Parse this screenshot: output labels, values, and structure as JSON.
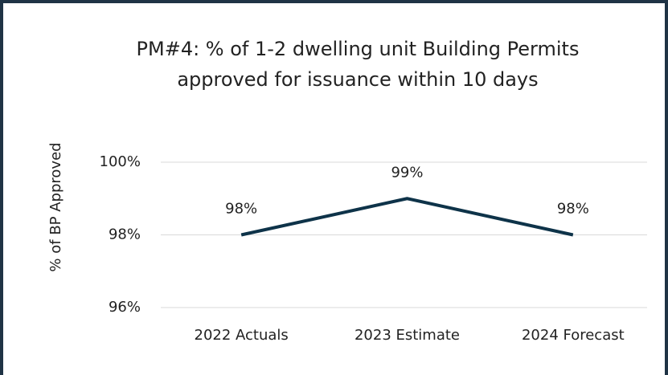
{
  "chart_data": {
    "type": "line",
    "title": "PM#4: % of 1-2 dwelling unit Building Permits approved for issuance within 10 days",
    "y_label": "% of BP Approved",
    "categories": [
      "2022 Actuals",
      "2023 Estimate",
      "2024 Forecast"
    ],
    "series": [
      {
        "name": "PM#4",
        "color": "#0e3349",
        "values": [
          98,
          99,
          98
        ],
        "value_labels": [
          "98%",
          "99%",
          "98%"
        ]
      }
    ],
    "ylim": [
      96,
      100
    ],
    "yticks": [
      {
        "value": 96,
        "label": "96%"
      },
      {
        "value": 98,
        "label": "98%"
      },
      {
        "value": 100,
        "label": "100%"
      }
    ],
    "grid": true
  }
}
